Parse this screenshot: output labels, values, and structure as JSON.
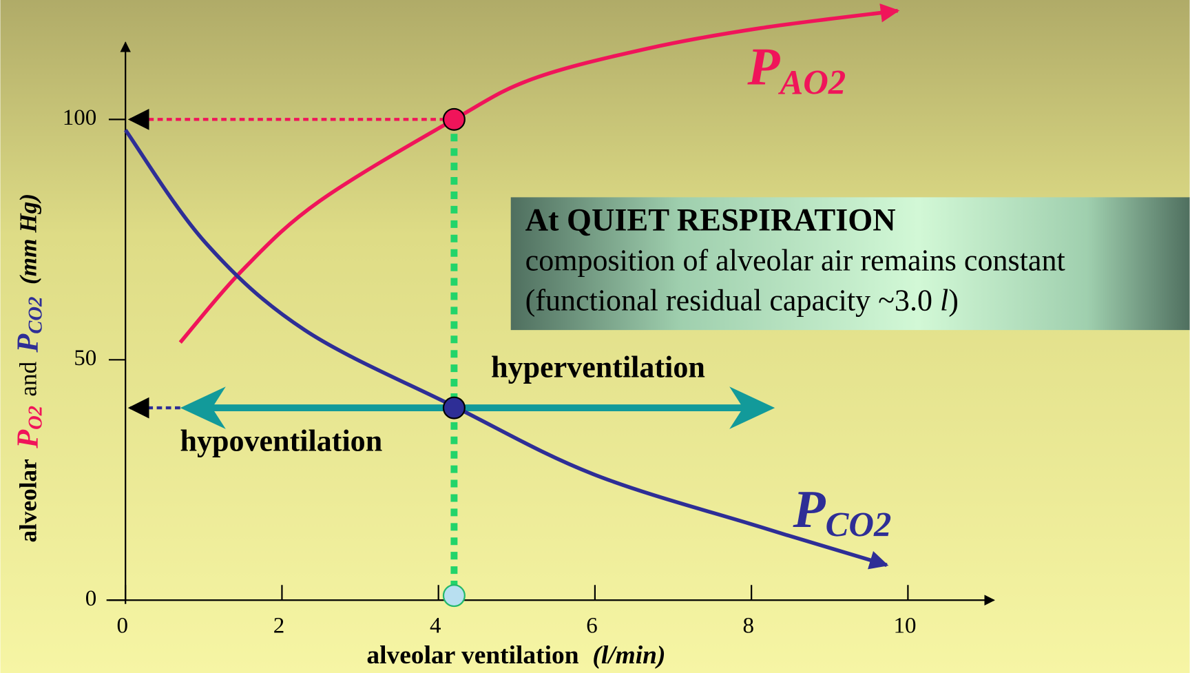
{
  "chart_data": {
    "type": "line",
    "xlabel": [
      "alveolar ventilation",
      "(l/min)"
    ],
    "ylabel": [
      "alveolar",
      "P",
      "O2",
      "and",
      "P",
      "CO2",
      "(mm Hg)"
    ],
    "xlim": [
      0,
      11.1
    ],
    "ylim": [
      0,
      116
    ],
    "xticks": [
      0,
      2,
      4,
      6,
      8,
      10
    ],
    "yticks": [
      0,
      50,
      100
    ],
    "series": [
      {
        "name": "P",
        "subscript": "AO2",
        "color": "#f0145a",
        "x": [
          0.7,
          1.51,
          2.48,
          4.2,
          5.2,
          6.66,
          8.12,
          9.87
        ],
        "values": [
          53.6,
          68.9,
          83,
          100,
          108.4,
          114.7,
          119,
          122.6
        ]
      },
      {
        "name": "P",
        "subscript": "CO2",
        "color": "#2e2e96",
        "x": [
          0,
          1.02,
          2.29,
          4.2,
          5.98,
          8.12,
          9.73
        ],
        "values": [
          97.8,
          74.4,
          56.2,
          40.3,
          26.2,
          15.2,
          7.3
        ]
      }
    ],
    "markers": {
      "x": 4.2,
      "values": [
        100,
        40
      ]
    },
    "annotations": {
      "box_title": "At QUIET RESPIRATION",
      "box_line1": "composition of alveolar air remains constant",
      "box_line2": [
        "(functional residual capacity ~3.0 ",
        "l",
        ")"
      ],
      "hyper": "hyperventilation",
      "hypo": "hypoventilation",
      "hypo_from_x": 0.7,
      "hyper_to_x": 8.3
    }
  }
}
